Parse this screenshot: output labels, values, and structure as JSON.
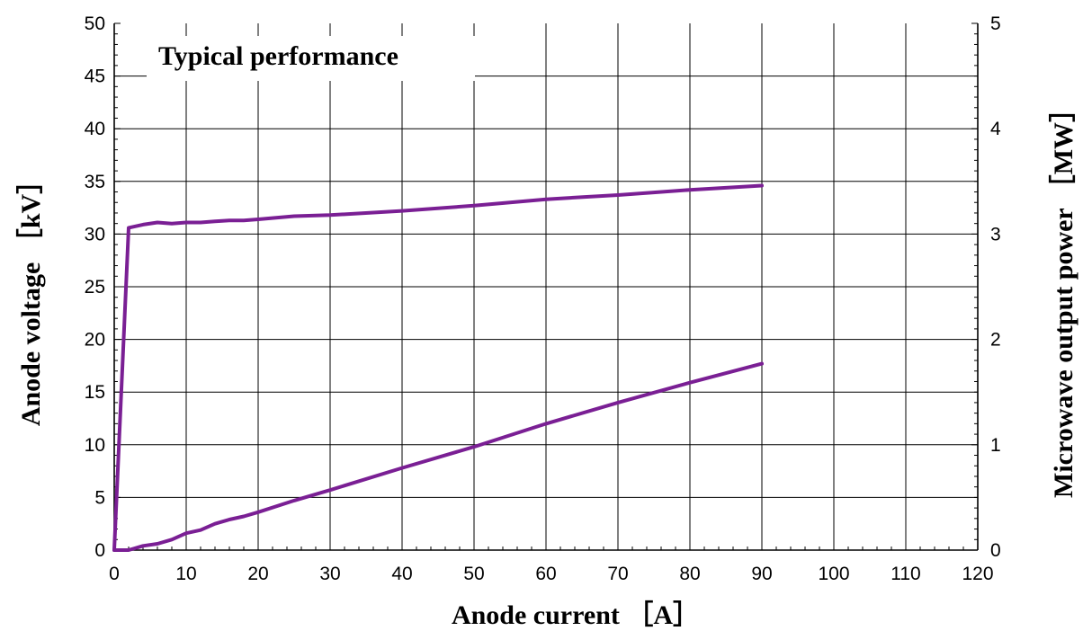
{
  "chart_data": {
    "type": "line",
    "title": "Typical performance",
    "xlabel": "Anode current ［A］",
    "ylabel": "Anode voltage ［kV］",
    "y2label": "Microwave output power ［MW］",
    "xlim": [
      0,
      120
    ],
    "ylim": [
      0,
      50
    ],
    "y2lim": [
      0,
      5
    ],
    "x_ticks": [
      "0",
      "10",
      "20",
      "30",
      "40",
      "50",
      "60",
      "70",
      "80",
      "90",
      "100",
      "110",
      "120"
    ],
    "y_ticks": [
      "0",
      "5",
      "10",
      "15",
      "20",
      "25",
      "30",
      "35",
      "40",
      "45",
      "50"
    ],
    "y2_ticks": [
      "0",
      "1",
      "2",
      "3",
      "4",
      "5"
    ],
    "grid": true,
    "series": [
      {
        "axis": "left",
        "color": "#7a1f94",
        "x": [
          0,
          2,
          4,
          6,
          8,
          10,
          12,
          14,
          16,
          18,
          20,
          25,
          30,
          40,
          50,
          60,
          70,
          80,
          90
        ],
        "y": [
          0,
          30.6,
          30.9,
          31.1,
          31.0,
          31.1,
          31.1,
          31.2,
          31.3,
          31.3,
          31.4,
          31.7,
          31.8,
          32.2,
          32.7,
          33.3,
          33.7,
          34.2,
          34.6
        ]
      },
      {
        "axis": "right",
        "color": "#7a1f94",
        "x": [
          0,
          2,
          4,
          6,
          8,
          10,
          12,
          14,
          16,
          18,
          20,
          25,
          30,
          40,
          50,
          60,
          70,
          80,
          90
        ],
        "y": [
          0,
          0.0,
          0.04,
          0.06,
          0.1,
          0.16,
          0.19,
          0.25,
          0.29,
          0.32,
          0.36,
          0.47,
          0.57,
          0.78,
          0.98,
          1.2,
          1.4,
          1.59,
          1.77
        ]
      }
    ]
  }
}
